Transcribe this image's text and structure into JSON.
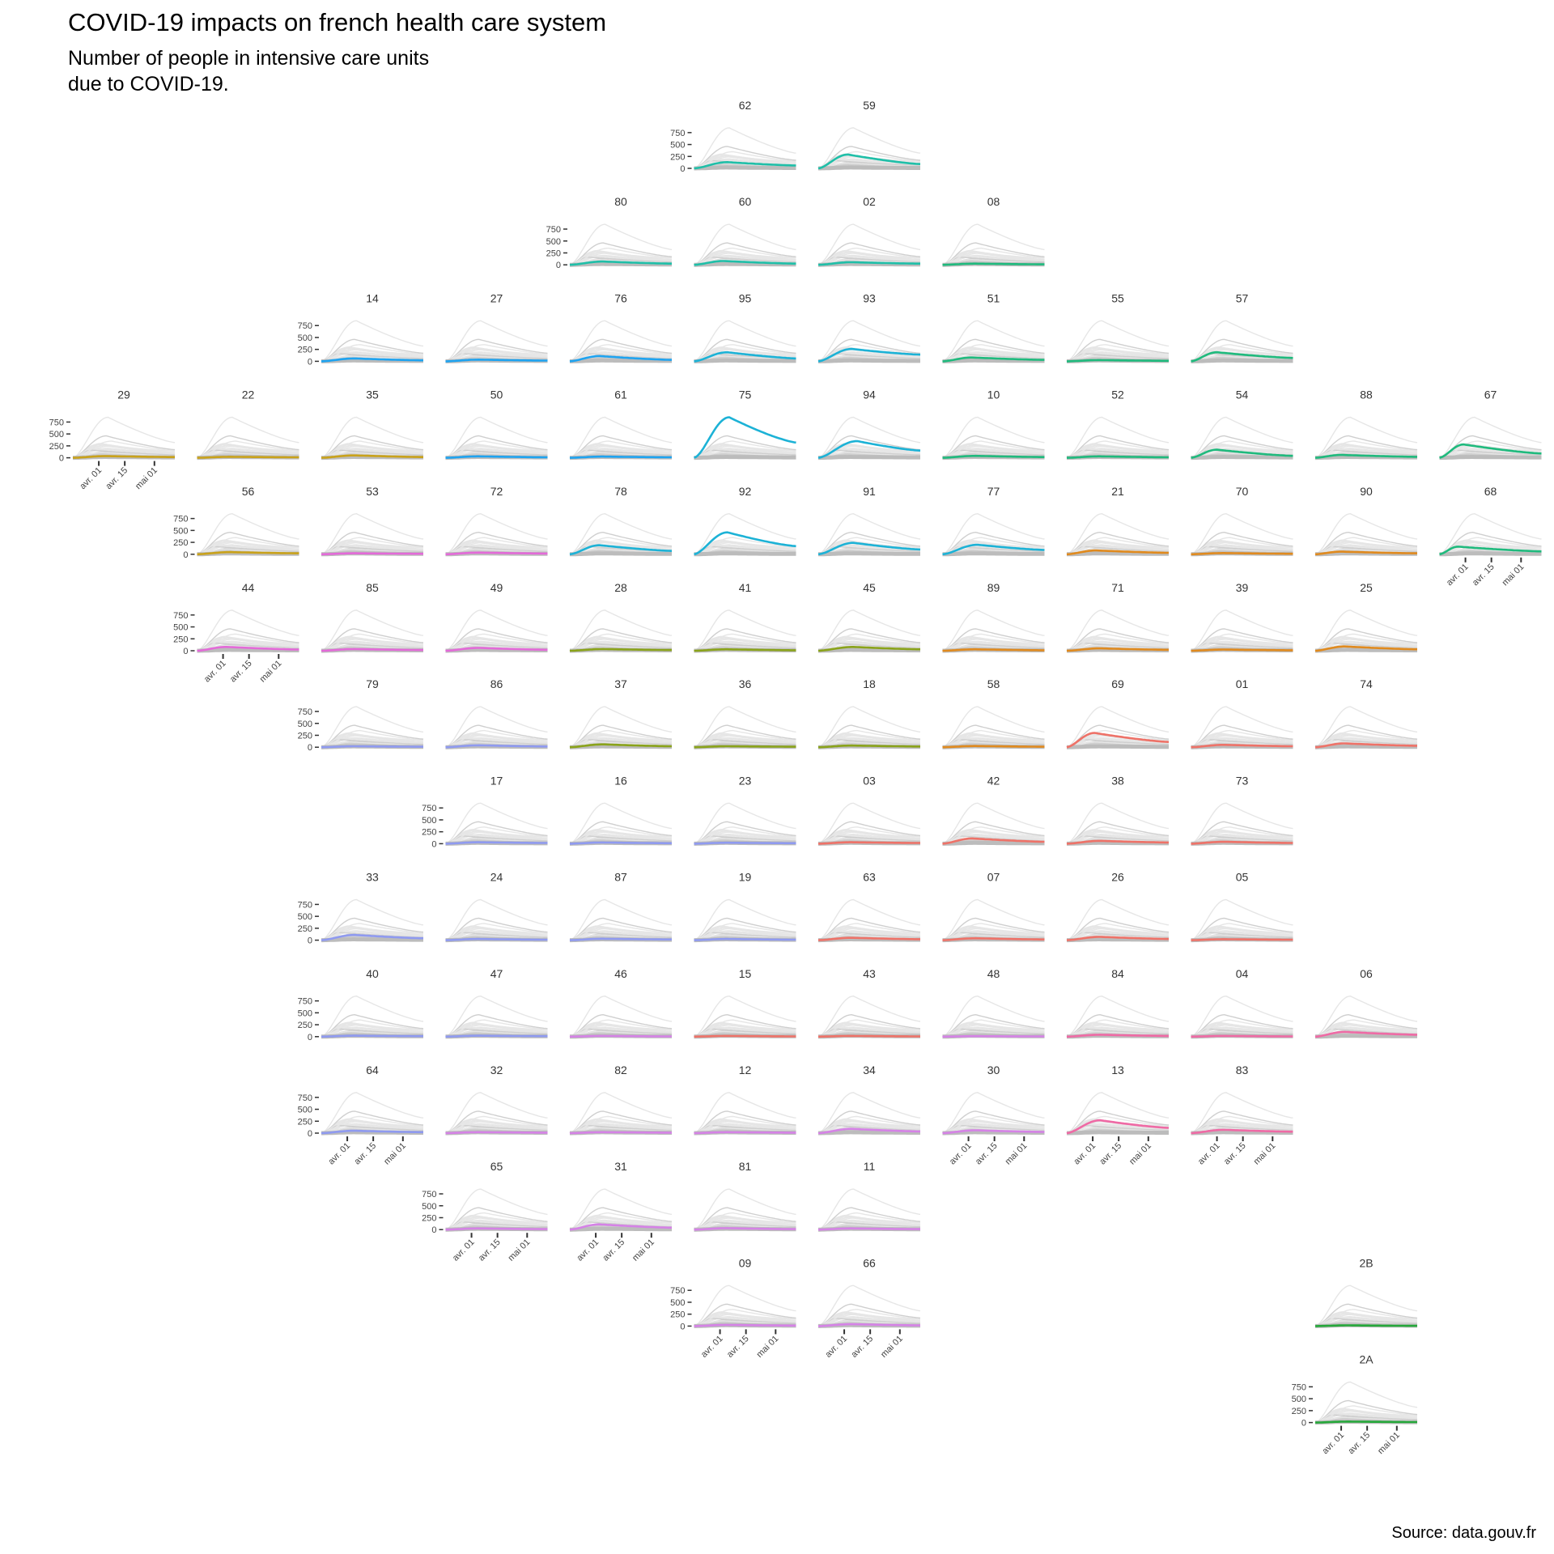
{
  "title": "COVID-19 impacts on french health care system",
  "subtitle_line1": "Number of people in intensive care units",
  "subtitle_line2": "due to COVID-19.",
  "caption": "Source: data.gouv.fr",
  "chart_data": {
    "type": "line",
    "layout": "geofacet small multiples (French départements)",
    "y_ticks": [
      0,
      250,
      500,
      750
    ],
    "ylim": [
      0,
      900
    ],
    "x_ticks": [
      "avr. 01",
      "avr. 15",
      "mai 01"
    ],
    "xlim": [
      "2020-03-18",
      "2020-05-12"
    ],
    "background_series": "all départements in grey",
    "regions": [
      {
        "code": "62",
        "row": 0,
        "col": 5,
        "peak": 130,
        "peak_date": "2020-04-05",
        "end": 60,
        "color": "#1fbfa8"
      },
      {
        "code": "59",
        "row": 0,
        "col": 6,
        "peak": 290,
        "peak_date": "2020-04-03",
        "end": 90,
        "color": "#1fbfa8"
      },
      {
        "code": "80",
        "row": 1,
        "col": 4,
        "peak": 70,
        "peak_date": "2020-04-05",
        "end": 25,
        "color": "#1fbfa8"
      },
      {
        "code": "60",
        "row": 1,
        "col": 5,
        "peak": 80,
        "peak_date": "2020-04-03",
        "end": 25,
        "color": "#1fbfa8"
      },
      {
        "code": "02",
        "row": 1,
        "col": 6,
        "peak": 55,
        "peak_date": "2020-04-05",
        "end": 25,
        "color": "#1fbfa8"
      },
      {
        "code": "08",
        "row": 1,
        "col": 7,
        "peak": 25,
        "peak_date": "2020-04-05",
        "end": 10,
        "color": "#1fba7d"
      },
      {
        "code": "14",
        "row": 2,
        "col": 2,
        "peak": 60,
        "peak_date": "2020-04-05",
        "end": 20,
        "color": "#1ea3f0"
      },
      {
        "code": "27",
        "row": 2,
        "col": 3,
        "peak": 35,
        "peak_date": "2020-04-05",
        "end": 15,
        "color": "#1ea3f0"
      },
      {
        "code": "76",
        "row": 2,
        "col": 4,
        "peak": 110,
        "peak_date": "2020-04-03",
        "end": 30,
        "color": "#1ea3f0"
      },
      {
        "code": "95",
        "row": 2,
        "col": 5,
        "peak": 190,
        "peak_date": "2020-04-05",
        "end": 60,
        "color": "#1cb2d6"
      },
      {
        "code": "93",
        "row": 2,
        "col": 6,
        "peak": 260,
        "peak_date": "2020-04-05",
        "end": 140,
        "color": "#1cb2d6"
      },
      {
        "code": "51",
        "row": 2,
        "col": 7,
        "peak": 80,
        "peak_date": "2020-04-03",
        "end": 30,
        "color": "#1fba7d"
      },
      {
        "code": "55",
        "row": 2,
        "col": 8,
        "peak": 25,
        "peak_date": "2020-04-05",
        "end": 10,
        "color": "#1fba7d"
      },
      {
        "code": "57",
        "row": 2,
        "col": 9,
        "peak": 190,
        "peak_date": "2020-04-01",
        "end": 70,
        "color": "#1fba7d"
      },
      {
        "code": "29",
        "row": 3,
        "col": 0,
        "peak": 35,
        "peak_date": "2020-04-05",
        "end": 15,
        "color": "#c9a21a"
      },
      {
        "code": "22",
        "row": 3,
        "col": 1,
        "peak": 20,
        "peak_date": "2020-04-05",
        "end": 10,
        "color": "#c9a21a"
      },
      {
        "code": "35",
        "row": 3,
        "col": 2,
        "peak": 50,
        "peak_date": "2020-04-05",
        "end": 15,
        "color": "#c9a21a"
      },
      {
        "code": "50",
        "row": 3,
        "col": 3,
        "peak": 30,
        "peak_date": "2020-04-05",
        "end": 10,
        "color": "#1ea3f0"
      },
      {
        "code": "61",
        "row": 3,
        "col": 4,
        "peak": 25,
        "peak_date": "2020-04-05",
        "end": 10,
        "color": "#1ea3f0"
      },
      {
        "code": "75",
        "row": 3,
        "col": 5,
        "peak": 850,
        "peak_date": "2020-04-06",
        "end": 320,
        "color": "#1cb2d6"
      },
      {
        "code": "94",
        "row": 3,
        "col": 6,
        "peak": 350,
        "peak_date": "2020-04-08",
        "end": 150,
        "color": "#1cb2d6"
      },
      {
        "code": "10",
        "row": 3,
        "col": 7,
        "peak": 40,
        "peak_date": "2020-04-05",
        "end": 15,
        "color": "#1fba7d"
      },
      {
        "code": "52",
        "row": 3,
        "col": 8,
        "peak": 30,
        "peak_date": "2020-04-05",
        "end": 10,
        "color": "#1fba7d"
      },
      {
        "code": "54",
        "row": 3,
        "col": 9,
        "peak": 170,
        "peak_date": "2020-04-01",
        "end": 40,
        "color": "#1fba7d"
      },
      {
        "code": "88",
        "row": 3,
        "col": 10,
        "peak": 60,
        "peak_date": "2020-04-01",
        "end": 20,
        "color": "#1fba7d"
      },
      {
        "code": "67",
        "row": 3,
        "col": 11,
        "peak": 280,
        "peak_date": "2020-03-31",
        "end": 90,
        "color": "#1fba7d"
      },
      {
        "code": "56",
        "row": 4,
        "col": 1,
        "peak": 45,
        "peak_date": "2020-04-05",
        "end": 20,
        "color": "#c9a21a"
      },
      {
        "code": "53",
        "row": 4,
        "col": 2,
        "peak": 20,
        "peak_date": "2020-04-05",
        "end": 10,
        "color": "#e36ad8"
      },
      {
        "code": "72",
        "row": 4,
        "col": 3,
        "peak": 35,
        "peak_date": "2020-04-05",
        "end": 15,
        "color": "#e36ad8"
      },
      {
        "code": "78",
        "row": 4,
        "col": 4,
        "peak": 190,
        "peak_date": "2020-04-03",
        "end": 70,
        "color": "#1cb2d6"
      },
      {
        "code": "92",
        "row": 4,
        "col": 5,
        "peak": 460,
        "peak_date": "2020-04-05",
        "end": 170,
        "color": "#1cb2d6"
      },
      {
        "code": "91",
        "row": 4,
        "col": 6,
        "peak": 240,
        "peak_date": "2020-04-06",
        "end": 100,
        "color": "#1cb2d6"
      },
      {
        "code": "77",
        "row": 4,
        "col": 7,
        "peak": 200,
        "peak_date": "2020-04-06",
        "end": 90,
        "color": "#1cb2d6"
      },
      {
        "code": "21",
        "row": 4,
        "col": 8,
        "peak": 80,
        "peak_date": "2020-04-03",
        "end": 30,
        "color": "#e08a1e"
      },
      {
        "code": "70",
        "row": 4,
        "col": 9,
        "peak": 25,
        "peak_date": "2020-04-05",
        "end": 10,
        "color": "#e08a1e"
      },
      {
        "code": "90",
        "row": 4,
        "col": 10,
        "peak": 55,
        "peak_date": "2020-04-01",
        "end": 20,
        "color": "#e08a1e"
      },
      {
        "code": "68",
        "row": 4,
        "col": 11,
        "peak": 160,
        "peak_date": "2020-03-28",
        "end": 60,
        "color": "#1fba7d"
      },
      {
        "code": "44",
        "row": 5,
        "col": 1,
        "peak": 80,
        "peak_date": "2020-04-03",
        "end": 25,
        "color": "#e36ad8"
      },
      {
        "code": "85",
        "row": 5,
        "col": 2,
        "peak": 35,
        "peak_date": "2020-04-05",
        "end": 15,
        "color": "#e36ad8"
      },
      {
        "code": "49",
        "row": 5,
        "col": 3,
        "peak": 60,
        "peak_date": "2020-04-05",
        "end": 20,
        "color": "#e36ad8"
      },
      {
        "code": "28",
        "row": 5,
        "col": 4,
        "peak": 35,
        "peak_date": "2020-04-05",
        "end": 15,
        "color": "#8aa31a"
      },
      {
        "code": "41",
        "row": 5,
        "col": 5,
        "peak": 30,
        "peak_date": "2020-04-05",
        "end": 10,
        "color": "#8aa31a"
      },
      {
        "code": "45",
        "row": 5,
        "col": 6,
        "peak": 80,
        "peak_date": "2020-04-06",
        "end": 30,
        "color": "#8aa31a"
      },
      {
        "code": "89",
        "row": 5,
        "col": 7,
        "peak": 30,
        "peak_date": "2020-04-05",
        "end": 10,
        "color": "#e08a1e"
      },
      {
        "code": "71",
        "row": 5,
        "col": 8,
        "peak": 50,
        "peak_date": "2020-04-05",
        "end": 20,
        "color": "#e08a1e"
      },
      {
        "code": "39",
        "row": 5,
        "col": 9,
        "peak": 25,
        "peak_date": "2020-04-05",
        "end": 10,
        "color": "#e08a1e"
      },
      {
        "code": "25",
        "row": 5,
        "col": 10,
        "peak": 90,
        "peak_date": "2020-04-03",
        "end": 30,
        "color": "#e08a1e"
      },
      {
        "code": "79",
        "row": 6,
        "col": 2,
        "peak": 20,
        "peak_date": "2020-04-05",
        "end": 10,
        "color": "#8f9af0"
      },
      {
        "code": "86",
        "row": 6,
        "col": 3,
        "peak": 40,
        "peak_date": "2020-04-05",
        "end": 15,
        "color": "#8f9af0"
      },
      {
        "code": "37",
        "row": 6,
        "col": 4,
        "peak": 60,
        "peak_date": "2020-04-05",
        "end": 20,
        "color": "#8aa31a"
      },
      {
        "code": "36",
        "row": 6,
        "col": 5,
        "peak": 20,
        "peak_date": "2020-04-05",
        "end": 10,
        "color": "#8aa31a"
      },
      {
        "code": "18",
        "row": 6,
        "col": 6,
        "peak": 35,
        "peak_date": "2020-04-05",
        "end": 15,
        "color": "#8aa31a"
      },
      {
        "code": "58",
        "row": 6,
        "col": 7,
        "peak": 25,
        "peak_date": "2020-04-05",
        "end": 10,
        "color": "#e08a1e"
      },
      {
        "code": "69",
        "row": 6,
        "col": 8,
        "peak": 300,
        "peak_date": "2020-04-02",
        "end": 110,
        "color": "#ee7268"
      },
      {
        "code": "01",
        "row": 6,
        "col": 9,
        "peak": 50,
        "peak_date": "2020-04-05",
        "end": 20,
        "color": "#ee7268"
      },
      {
        "code": "74",
        "row": 6,
        "col": 10,
        "peak": 80,
        "peak_date": "2020-04-03",
        "end": 30,
        "color": "#ee7268"
      },
      {
        "code": "17",
        "row": 7,
        "col": 3,
        "peak": 30,
        "peak_date": "2020-04-05",
        "end": 15,
        "color": "#8f9af0"
      },
      {
        "code": "16",
        "row": 7,
        "col": 4,
        "peak": 25,
        "peak_date": "2020-04-05",
        "end": 10,
        "color": "#8f9af0"
      },
      {
        "code": "23",
        "row": 7,
        "col": 5,
        "peak": 20,
        "peak_date": "2020-04-05",
        "end": 10,
        "color": "#8f9af0"
      },
      {
        "code": "03",
        "row": 7,
        "col": 6,
        "peak": 30,
        "peak_date": "2020-04-05",
        "end": 15,
        "color": "#ee7268"
      },
      {
        "code": "42",
        "row": 7,
        "col": 7,
        "peak": 110,
        "peak_date": "2020-04-03",
        "end": 40,
        "color": "#ee7268"
      },
      {
        "code": "38",
        "row": 7,
        "col": 8,
        "peak": 60,
        "peak_date": "2020-04-05",
        "end": 25,
        "color": "#ee7268"
      },
      {
        "code": "73",
        "row": 7,
        "col": 9,
        "peak": 40,
        "peak_date": "2020-04-05",
        "end": 15,
        "color": "#ee7268"
      },
      {
        "code": "33",
        "row": 8,
        "col": 2,
        "peak": 110,
        "peak_date": "2020-04-05",
        "end": 40,
        "color": "#8f9af0"
      },
      {
        "code": "24",
        "row": 8,
        "col": 3,
        "peak": 25,
        "peak_date": "2020-04-05",
        "end": 10,
        "color": "#8f9af0"
      },
      {
        "code": "87",
        "row": 8,
        "col": 4,
        "peak": 30,
        "peak_date": "2020-04-05",
        "end": 15,
        "color": "#8f9af0"
      },
      {
        "code": "19",
        "row": 8,
        "col": 5,
        "peak": 25,
        "peak_date": "2020-04-05",
        "end": 10,
        "color": "#8f9af0"
      },
      {
        "code": "63",
        "row": 8,
        "col": 6,
        "peak": 50,
        "peak_date": "2020-04-05",
        "end": 20,
        "color": "#ee7268"
      },
      {
        "code": "07",
        "row": 8,
        "col": 7,
        "peak": 40,
        "peak_date": "2020-04-05",
        "end": 15,
        "color": "#ee7268"
      },
      {
        "code": "26",
        "row": 8,
        "col": 8,
        "peak": 70,
        "peak_date": "2020-04-05",
        "end": 25,
        "color": "#ee7268"
      },
      {
        "code": "05",
        "row": 8,
        "col": 9,
        "peak": 20,
        "peak_date": "2020-04-05",
        "end": 10,
        "color": "#ee7268"
      },
      {
        "code": "40",
        "row": 9,
        "col": 2,
        "peak": 20,
        "peak_date": "2020-04-05",
        "end": 10,
        "color": "#8f9af0"
      },
      {
        "code": "47",
        "row": 9,
        "col": 3,
        "peak": 20,
        "peak_date": "2020-04-05",
        "end": 10,
        "color": "#8f9af0"
      },
      {
        "code": "46",
        "row": 9,
        "col": 4,
        "peak": 15,
        "peak_date": "2020-04-05",
        "end": 5,
        "color": "#d582e6"
      },
      {
        "code": "15",
        "row": 9,
        "col": 5,
        "peak": 15,
        "peak_date": "2020-04-05",
        "end": 5,
        "color": "#ee7268"
      },
      {
        "code": "43",
        "row": 9,
        "col": 6,
        "peak": 15,
        "peak_date": "2020-04-05",
        "end": 5,
        "color": "#ee7268"
      },
      {
        "code": "48",
        "row": 9,
        "col": 7,
        "peak": 10,
        "peak_date": "2020-04-05",
        "end": 5,
        "color": "#d582e6"
      },
      {
        "code": "84",
        "row": 9,
        "col": 8,
        "peak": 40,
        "peak_date": "2020-04-05",
        "end": 15,
        "color": "#ef6aa5"
      },
      {
        "code": "04",
        "row": 9,
        "col": 9,
        "peak": 15,
        "peak_date": "2020-04-05",
        "end": 5,
        "color": "#ef6aa5"
      },
      {
        "code": "06",
        "row": 9,
        "col": 10,
        "peak": 100,
        "peak_date": "2020-04-03",
        "end": 40,
        "color": "#ef6aa5"
      },
      {
        "code": "64",
        "row": 10,
        "col": 2,
        "peak": 50,
        "peak_date": "2020-04-05",
        "end": 20,
        "color": "#8f9af0"
      },
      {
        "code": "32",
        "row": 10,
        "col": 3,
        "peak": 20,
        "peak_date": "2020-04-05",
        "end": 10,
        "color": "#d582e6"
      },
      {
        "code": "82",
        "row": 10,
        "col": 4,
        "peak": 20,
        "peak_date": "2020-04-05",
        "end": 10,
        "color": "#d582e6"
      },
      {
        "code": "12",
        "row": 10,
        "col": 5,
        "peak": 20,
        "peak_date": "2020-04-05",
        "end": 10,
        "color": "#d582e6"
      },
      {
        "code": "34",
        "row": 10,
        "col": 6,
        "peak": 90,
        "peak_date": "2020-04-05",
        "end": 35,
        "color": "#d582e6"
      },
      {
        "code": "30",
        "row": 10,
        "col": 7,
        "peak": 60,
        "peak_date": "2020-04-05",
        "end": 25,
        "color": "#d582e6"
      },
      {
        "code": "13",
        "row": 10,
        "col": 8,
        "peak": 270,
        "peak_date": "2020-04-05",
        "end": 110,
        "color": "#ef6aa5"
      },
      {
        "code": "83",
        "row": 10,
        "col": 9,
        "peak": 70,
        "peak_date": "2020-04-05",
        "end": 30,
        "color": "#ef6aa5"
      },
      {
        "code": "65",
        "row": 11,
        "col": 3,
        "peak": 25,
        "peak_date": "2020-04-05",
        "end": 10,
        "color": "#d582e6"
      },
      {
        "code": "31",
        "row": 11,
        "col": 4,
        "peak": 110,
        "peak_date": "2020-04-03",
        "end": 40,
        "color": "#d582e6"
      },
      {
        "code": "81",
        "row": 11,
        "col": 5,
        "peak": 30,
        "peak_date": "2020-04-05",
        "end": 10,
        "color": "#d582e6"
      },
      {
        "code": "11",
        "row": 11,
        "col": 6,
        "peak": 25,
        "peak_date": "2020-04-05",
        "end": 10,
        "color": "#d582e6"
      },
      {
        "code": "09",
        "row": 12,
        "col": 5,
        "peak": 25,
        "peak_date": "2020-04-05",
        "end": 10,
        "color": "#d582e6"
      },
      {
        "code": "66",
        "row": 12,
        "col": 6,
        "peak": 40,
        "peak_date": "2020-04-05",
        "end": 15,
        "color": "#d582e6"
      },
      {
        "code": "2B",
        "row": 12,
        "col": 10,
        "peak": 15,
        "peak_date": "2020-04-05",
        "end": 5,
        "color": "#25a83a"
      },
      {
        "code": "2A",
        "row": 13,
        "col": 10,
        "peak": 20,
        "peak_date": "2020-04-05",
        "end": 10,
        "color": "#25a83a"
      }
    ]
  }
}
